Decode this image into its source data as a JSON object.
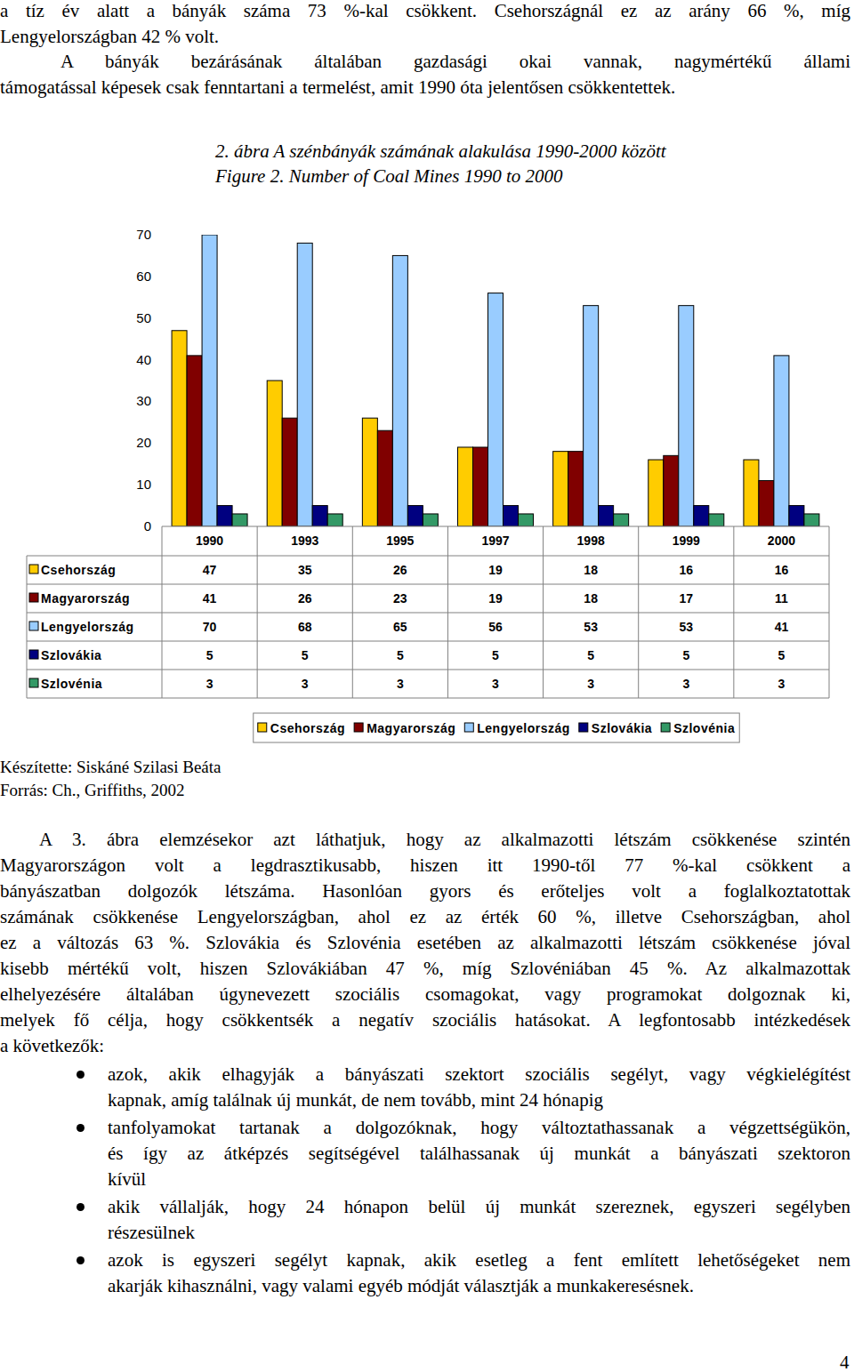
{
  "document": {
    "top_paragraphs": [
      {
        "lines": [
          "a tíz év alatt a bányák száma 73 %-kal csökkent. Csehországnál ez az arány 66 %, míg",
          "Lengyelországban 42 % volt."
        ]
      },
      {
        "lines": [
          "A bányák bezárásának általában gazdasági okai vannak, nagymértékű állami",
          "támogatással képesek csak fenntartani a termelést, amit 1990 óta jelentősen csökkentettek."
        ]
      }
    ],
    "caption": [
      "2. ábra A szénbányák számának alakulása 1990-2000 között",
      "Figure 2. Number of Coal Mines 1990 to 2000"
    ],
    "credits": [
      "Készítette: Siskáné Szilasi Beáta",
      "Forrás: Ch., Griffiths, 2002"
    ],
    "bottom_paragraph": {
      "lines": [
        "A 3. ábra elemzésekor azt láthatjuk, hogy az alkalmazotti létszám csökkenése szintén",
        "Magyarországon volt a legdrasztikusabb, hiszen itt 1990-től 77 %-kal csökkent a",
        "bányászatban dolgozók létszáma. Hasonlóan gyors és erőteljes volt a foglalkoztatottak",
        "számának csökkenése Lengyelországban, ahol ez az érték 60 %, illetve Csehországban, ahol",
        "ez a változás 63 %. Szlovákia és Szlovénia esetében az alkalmazotti létszám csökkenése jóval",
        "kisebb mértékű volt, hiszen Szlovákiában 47 %, míg Szlovéniában 45 %. Az alkalmazottak",
        "elhelyezésére általában úgynevezett szociális csomagokat, vagy programokat dolgoznak ki,",
        "melyek fő célja, hogy csökkentsék a negatív szociális hatásokat. A legfontosabb intézkedések",
        "a következők:"
      ]
    },
    "bullets": [
      [
        "azok, akik elhagyják a bányászati szektort szociális segélyt, vagy végkielégítést",
        "kapnak, amíg találnak új munkát, de nem tovább, mint 24 hónapig"
      ],
      [
        "tanfolyamokat tartanak a dolgozóknak, hogy változtathassanak a végzettségükön,",
        "és így az átképzés segítségével találhassanak új munkát a bányászati szektoron",
        "kívül"
      ],
      [
        "akik vállalják, hogy 24 hónapon belül új munkát szereznek, egyszeri segélyben",
        "részesülnek"
      ],
      [
        "azok is egyszeri segélyt kapnak, akik esetleg a fent említett lehetőségeket nem",
        "akarják kihasználni, vagy valami egyéb módját választják a munkakeresésnek."
      ]
    ],
    "page_number": "4"
  },
  "chart_data": {
    "type": "bar",
    "categories": [
      "1990",
      "1993",
      "1995",
      "1997",
      "1998",
      "1999",
      "2000"
    ],
    "series": [
      {
        "name": "Csehország",
        "color": "#ffcc00",
        "values": [
          47,
          35,
          26,
          19,
          18,
          16,
          16
        ]
      },
      {
        "name": "Magyarország",
        "color": "#800000",
        "values": [
          41,
          26,
          23,
          19,
          18,
          17,
          11
        ]
      },
      {
        "name": "Lengyelország",
        "color": "#99ccff",
        "values": [
          70,
          68,
          65,
          56,
          53,
          53,
          41
        ]
      },
      {
        "name": "Szlovákia",
        "color": "#000080",
        "values": [
          5,
          5,
          5,
          5,
          5,
          5,
          5
        ]
      },
      {
        "name": "Szlovénia",
        "color": "#339966",
        "values": [
          3,
          3,
          3,
          3,
          3,
          3,
          3
        ]
      }
    ],
    "ylim": [
      0,
      70
    ],
    "yticks": [
      0,
      10,
      20,
      30,
      40,
      50,
      60,
      70
    ],
    "grid": false,
    "legend": "bottom"
  }
}
